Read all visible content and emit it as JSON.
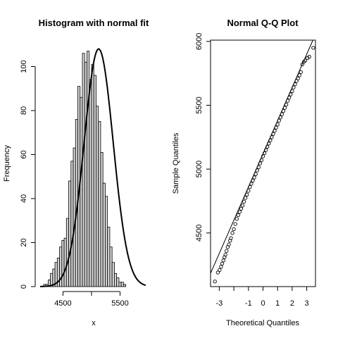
{
  "chart_data": [
    {
      "type": "histogram",
      "title": "Histogram with normal fit",
      "xlabel": "x",
      "ylabel": "Frequency",
      "xlim": [
        4100,
        5950
      ],
      "ylim": [
        0,
        112
      ],
      "x_ticks": [
        4500,
        5500
      ],
      "y_ticks": [
        0,
        20,
        40,
        60,
        80,
        100
      ],
      "bin_width": 40,
      "bin_start": 4160,
      "counts": [
        1,
        1,
        3,
        6,
        8,
        11,
        13,
        18,
        21,
        22,
        31,
        48,
        57,
        63,
        76,
        91,
        86,
        106,
        102,
        107,
        94,
        101,
        96,
        82,
        75,
        61,
        47,
        41,
        27,
        18,
        11,
        6,
        4,
        2,
        2,
        1
      ],
      "normal_fit": {
        "mean": 5125,
        "sd": 255,
        "peak": 108
      }
    },
    {
      "type": "scatter",
      "title": "Normal Q-Q Plot",
      "xlabel": "Theoretical Quantiles",
      "ylabel": "Sample Quantiles",
      "xlim": [
        -3.6,
        3.6
      ],
      "ylim": [
        4080,
        6010
      ],
      "x_ticks": [
        -3,
        -1,
        0,
        1,
        2,
        3
      ],
      "y_ticks": [
        4500,
        5000,
        5500,
        6000
      ],
      "reference_line": {
        "intercept": 5120,
        "slope": 260
      },
      "points": [
        [
          -3.3,
          4120
        ],
        [
          -3.1,
          4190
        ],
        [
          -2.98,
          4210
        ],
        [
          -2.88,
          4235
        ],
        [
          -2.8,
          4260
        ],
        [
          -2.72,
          4285
        ],
        [
          -2.64,
          4310
        ],
        [
          -2.58,
          4330
        ],
        [
          -2.5,
          4360
        ],
        [
          -2.42,
          4390
        ],
        [
          -2.34,
          4410
        ],
        [
          -2.26,
          4440
        ],
        [
          -2.2,
          4460
        ],
        [
          -2.1,
          4500
        ],
        [
          -2.0,
          4530
        ],
        [
          -1.9,
          4570
        ],
        [
          -1.8,
          4610
        ],
        [
          -1.7,
          4640
        ],
        [
          -1.6,
          4665
        ],
        [
          -1.5,
          4690
        ],
        [
          -1.4,
          4715
        ],
        [
          -1.3,
          4745
        ],
        [
          -1.2,
          4775
        ],
        [
          -1.1,
          4800
        ],
        [
          -1.0,
          4830
        ],
        [
          -0.9,
          4860
        ],
        [
          -0.8,
          4885
        ],
        [
          -0.7,
          4910
        ],
        [
          -0.6,
          4935
        ],
        [
          -0.5,
          4960
        ],
        [
          -0.4,
          4990
        ],
        [
          -0.3,
          5015
        ],
        [
          -0.2,
          5045
        ],
        [
          -0.1,
          5070
        ],
        [
          0.0,
          5100
        ],
        [
          0.1,
          5125
        ],
        [
          0.2,
          5150
        ],
        [
          0.3,
          5175
        ],
        [
          0.4,
          5200
        ],
        [
          0.5,
          5225
        ],
        [
          0.6,
          5250
        ],
        [
          0.7,
          5275
        ],
        [
          0.8,
          5300
        ],
        [
          0.9,
          5325
        ],
        [
          1.0,
          5350
        ],
        [
          1.1,
          5380
        ],
        [
          1.2,
          5405
        ],
        [
          1.3,
          5430
        ],
        [
          1.4,
          5455
        ],
        [
          1.5,
          5480
        ],
        [
          1.6,
          5505
        ],
        [
          1.7,
          5535
        ],
        [
          1.8,
          5560
        ],
        [
          1.9,
          5585
        ],
        [
          2.0,
          5610
        ],
        [
          2.1,
          5640
        ],
        [
          2.2,
          5665
        ],
        [
          2.3,
          5690
        ],
        [
          2.4,
          5710
        ],
        [
          2.5,
          5735
        ],
        [
          2.6,
          5760
        ],
        [
          2.7,
          5820
        ],
        [
          2.8,
          5840
        ],
        [
          2.9,
          5850
        ],
        [
          3.05,
          5870
        ],
        [
          3.18,
          5880
        ],
        [
          3.45,
          5950
        ]
      ]
    }
  ]
}
